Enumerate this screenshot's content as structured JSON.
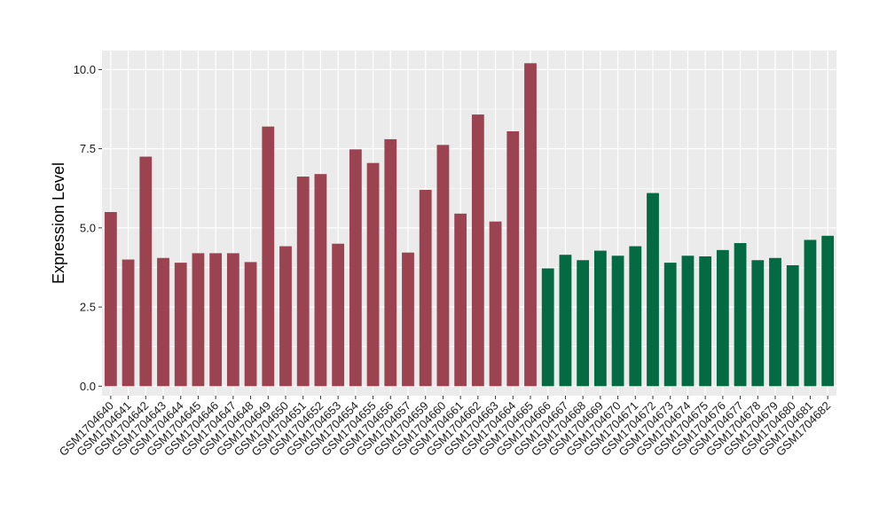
{
  "chart_data": {
    "type": "bar",
    "title": "",
    "xlabel": "",
    "ylabel": "Expression Level",
    "ylim": [
      -0.3,
      10.6
    ],
    "yticks": [
      "0.0",
      "2.5",
      "5.0",
      "7.5",
      "10.0"
    ],
    "grid": true,
    "legend": "none",
    "colors": {
      "group1": "#9b4350",
      "group2": "#046a44",
      "panel": "#ebebeb",
      "gridline": "#ffffff"
    },
    "categories": [
      "GSM1704640",
      "GSM1704641",
      "GSM1704642",
      "GSM1704643",
      "GSM1704644",
      "GSM1704645",
      "GSM1704646",
      "GSM1704647",
      "GSM1704648",
      "GSM1704649",
      "GSM1704650",
      "GSM1704651",
      "GSM1704652",
      "GSM1704653",
      "GSM1704654",
      "GSM1704655",
      "GSM1704656",
      "GSM1704657",
      "GSM1704659",
      "GSM1704660",
      "GSM1704661",
      "GSM1704662",
      "GSM1704663",
      "GSM1704664",
      "GSM1704665",
      "GSM1704666",
      "GSM1704667",
      "GSM1704668",
      "GSM1704669",
      "GSM1704670",
      "GSM1704671",
      "GSM1704672",
      "GSM1704673",
      "GSM1704674",
      "GSM1704675",
      "GSM1704676",
      "GSM1704677",
      "GSM1704678",
      "GSM1704679",
      "GSM1704680",
      "GSM1704681",
      "GSM1704682"
    ],
    "values": [
      5.5,
      4.0,
      7.25,
      4.05,
      3.9,
      4.2,
      4.2,
      4.2,
      3.92,
      8.2,
      4.42,
      6.62,
      6.7,
      4.5,
      7.48,
      7.05,
      7.8,
      4.22,
      6.2,
      7.62,
      5.45,
      8.58,
      5.2,
      8.05,
      10.2,
      3.72,
      4.15,
      3.98,
      4.28,
      4.12,
      4.42,
      6.1,
      3.9,
      4.12,
      4.1,
      4.3,
      4.52,
      3.98,
      4.05,
      3.82,
      4.62,
      4.75
    ],
    "groups": [
      1,
      1,
      1,
      1,
      1,
      1,
      1,
      1,
      1,
      1,
      1,
      1,
      1,
      1,
      1,
      1,
      1,
      1,
      1,
      1,
      1,
      1,
      1,
      1,
      1,
      2,
      2,
      2,
      2,
      2,
      2,
      2,
      2,
      2,
      2,
      2,
      2,
      2,
      2,
      2,
      2,
      2
    ]
  }
}
